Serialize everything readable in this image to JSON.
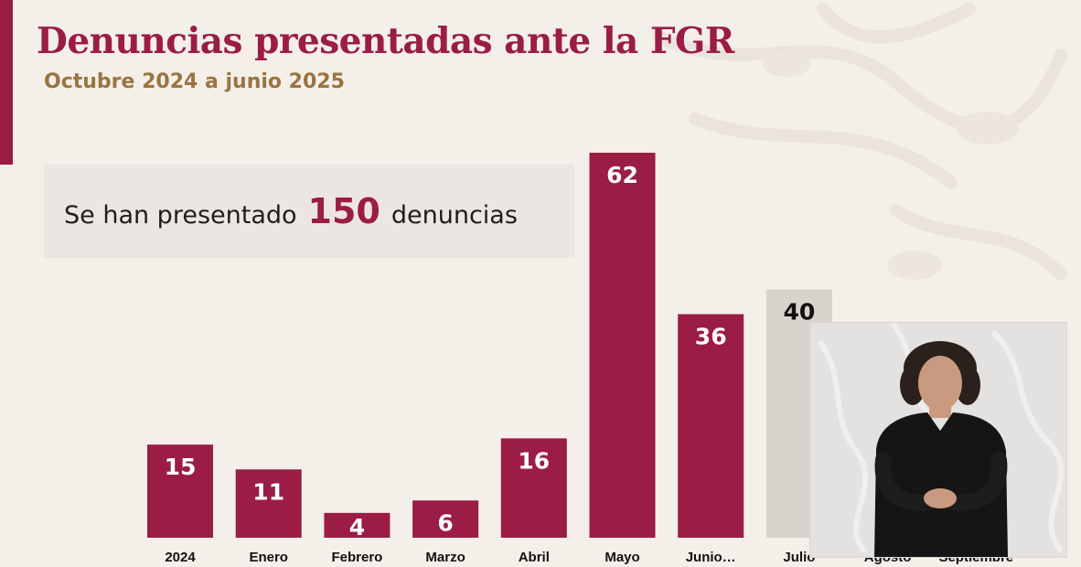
{
  "header": {
    "title": "Denuncias presentadas ante la FGR",
    "subtitle": "Octubre 2024 a junio 2025"
  },
  "summary": {
    "prefix": "Se han presentado",
    "number": "150",
    "suffix": "denuncias"
  },
  "colors": {
    "brand": "#9b1c45",
    "accent_text": "#9a7440",
    "pending_bar": "#d9d3cd"
  },
  "chart_data": {
    "type": "bar",
    "title": "Denuncias presentadas ante la FGR",
    "subtitle": "Octubre 2024 a junio 2025",
    "categories": [
      "2024",
      "Enero",
      "Febrero",
      "Marzo",
      "Abril",
      "Mayo",
      "Junio…",
      "Julio",
      "Agosto",
      "Septiembre"
    ],
    "values": [
      15,
      11,
      4,
      6,
      16,
      62,
      36,
      40,
      null,
      null
    ],
    "pending": [
      false,
      false,
      false,
      false,
      false,
      false,
      false,
      true,
      false,
      false
    ],
    "xlabel": "",
    "ylabel": "",
    "ylim": [
      0,
      62
    ],
    "grid": false,
    "legend": "none"
  },
  "overlay": {
    "icon": "sign-language-interpreter"
  }
}
